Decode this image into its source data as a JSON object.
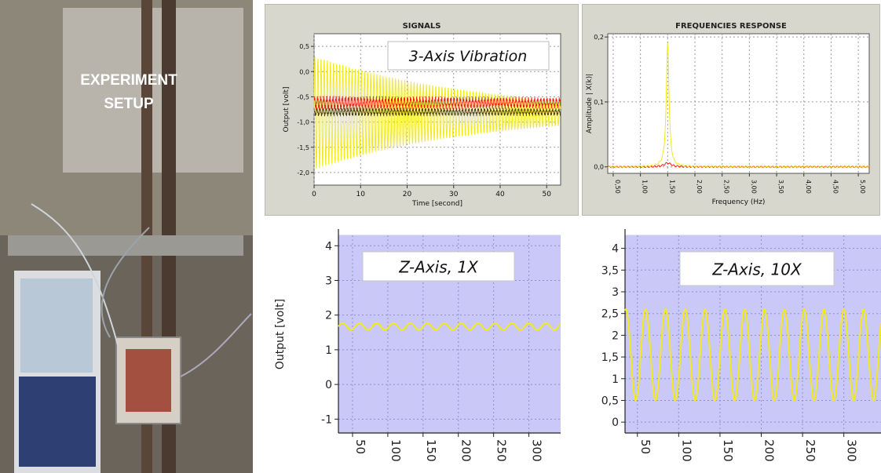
{
  "photo": {
    "label_line1": "EXPERIMENT",
    "label_line2": "SETUP"
  },
  "colors": {
    "yellow": "#f2ea1c",
    "red": "#ef1b12",
    "dark": "#4a3a10",
    "lavender": "#c9c8f6",
    "panel": "#d7d7cd"
  },
  "chart_data": [
    {
      "id": "signals",
      "type": "line",
      "title": "SIGNALS",
      "annotation": "3-Axis Vibration",
      "xlabel": "Time [second]",
      "ylabel": "Output [volt]",
      "xlim": [
        0,
        53
      ],
      "ylim": [
        -2.25,
        0.75
      ],
      "xticks": [
        0,
        10,
        20,
        30,
        40,
        50
      ],
      "xtick_labels": [
        "0",
        "10",
        "20",
        "30",
        "40",
        "50"
      ],
      "yticks": [
        0.5,
        0,
        -0.5,
        -1,
        -1.5,
        -2
      ],
      "ytick_labels": [
        "0,5",
        "0,0",
        "-0,5",
        "-1,0",
        "-1,5",
        "-2,0"
      ],
      "grid": true,
      "series": [
        {
          "color": "yellow",
          "center": -0.82,
          "amp_start": 1.12,
          "amp_end": 0.25,
          "freq_hz": 1.5
        },
        {
          "color": "red",
          "center": -0.62,
          "amp_start": 0.1,
          "amp_end": 0.07,
          "freq_hz": 1.5
        },
        {
          "color": "dark",
          "center": -0.8,
          "amp_start": 0.06,
          "amp_end": 0.05,
          "freq_hz": 1.5
        }
      ]
    },
    {
      "id": "freq",
      "type": "line",
      "title": "FREQUENCIES RESPONSE",
      "xlabel": "Frequency (Hz)",
      "ylabel": "Amplitude | X(k)|",
      "xlim": [
        0.4,
        5.2
      ],
      "ylim": [
        -0.01,
        0.205
      ],
      "xticks": [
        0.5,
        1.0,
        1.5,
        2.0,
        2.5,
        3.0,
        3.5,
        4.0,
        4.5,
        5.0
      ],
      "xtick_labels": [
        "0,50",
        "1,00",
        "1,50",
        "2,00",
        "2,50",
        "3,00",
        "3,50",
        "4,00",
        "4,50",
        "5,00"
      ],
      "yticks": [
        0.2,
        0.1,
        0.0
      ],
      "ytick_labels": [
        "0,2",
        "0,1",
        "0,0"
      ],
      "grid": true,
      "series": [
        {
          "color": "yellow",
          "peak_x": 1.5,
          "peak_y": 0.19,
          "width": 0.03
        },
        {
          "color": "red",
          "peak_x": 1.5,
          "peak_y": 0.006,
          "width": 0.08
        }
      ]
    },
    {
      "id": "z1x",
      "type": "line",
      "annotation": "Z-Axis, 1X",
      "ylabel": "Output [volt]",
      "xlim": [
        30,
        345
      ],
      "ylim": [
        -1.4,
        4.3
      ],
      "xticks": [
        50,
        100,
        150,
        200,
        250,
        300
      ],
      "xtick_labels": [
        "50",
        "100",
        "150",
        "200",
        "250",
        "300"
      ],
      "yticks": [
        4,
        3,
        2,
        1,
        0,
        -1
      ],
      "ytick_labels": [
        "4",
        "3",
        "2",
        "1",
        "0",
        "-1"
      ],
      "grid": true,
      "series": [
        {
          "color": "yellow",
          "center": 1.67,
          "amp": 0.1,
          "period": 24
        }
      ]
    },
    {
      "id": "z10x",
      "type": "line",
      "annotation": "Z-Axis, 10X",
      "xlim": [
        35,
        345
      ],
      "ylim": [
        -0.25,
        4.3
      ],
      "xticks": [
        50,
        100,
        150,
        200,
        250,
        300
      ],
      "xtick_labels": [
        "50",
        "100",
        "150",
        "200",
        "250",
        "300"
      ],
      "yticks": [
        4,
        3.5,
        3,
        2.5,
        2,
        1.5,
        1,
        0.5,
        0
      ],
      "ytick_labels": [
        "4",
        "3,5",
        "3",
        "2,5",
        "2",
        "1,5",
        "1",
        "0,5",
        "0"
      ],
      "grid": true,
      "series": [
        {
          "color": "yellow",
          "center": 1.55,
          "amp": 1.05,
          "period": 24
        }
      ]
    }
  ]
}
